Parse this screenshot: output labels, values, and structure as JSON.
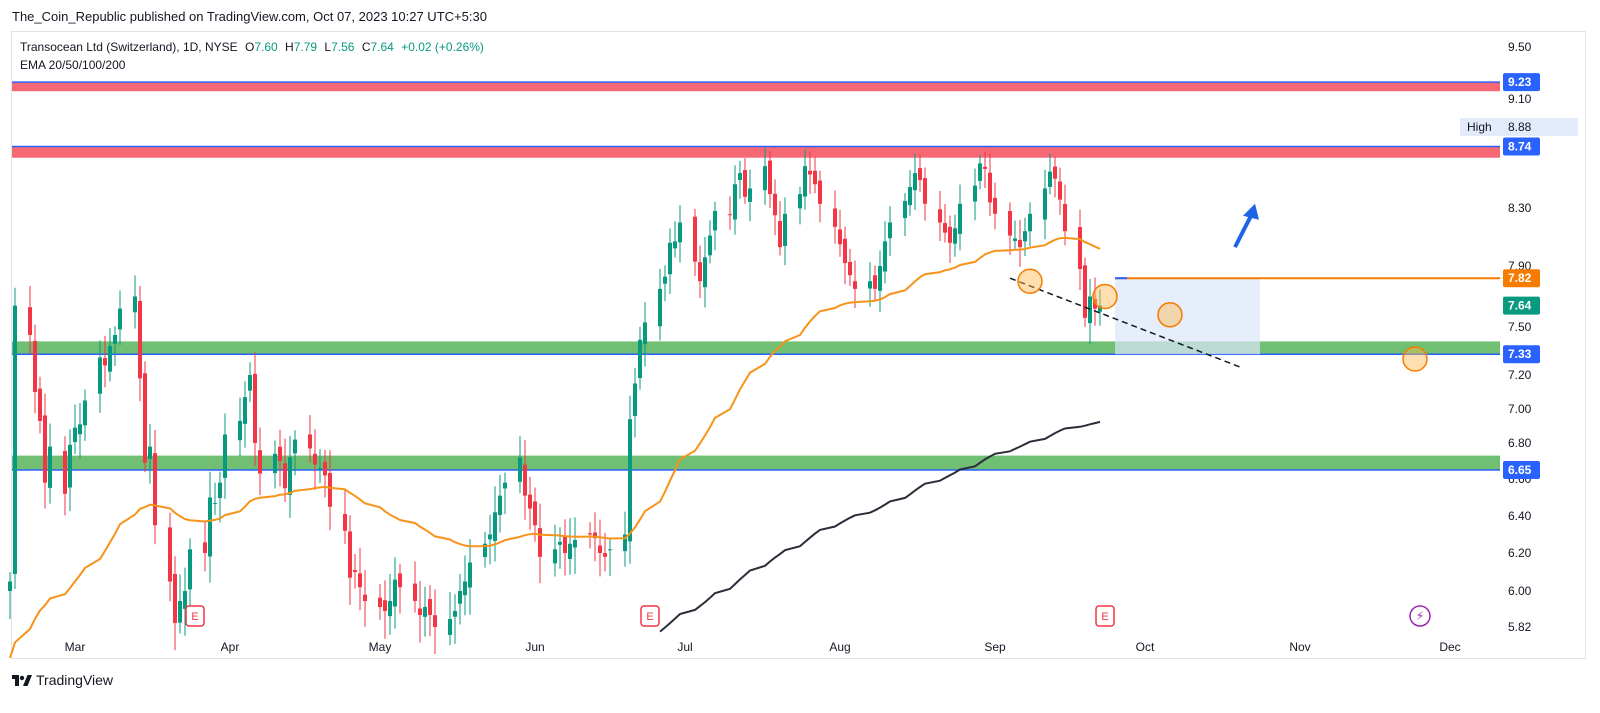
{
  "header": {
    "published": "The_Coin_Republic published on TradingView.com, Oct 07, 2023 10:27 UTC+5:30"
  },
  "legend": {
    "symbol": "Transocean Ltd (Switzerland), 1D, NYSE",
    "o_label": "O",
    "o": "7.60",
    "h_label": "H",
    "h": "7.79",
    "l_label": "L",
    "l": "7.56",
    "c_label": "C",
    "c": "7.64",
    "change": "+0.02 (+0.26%)",
    "indicator": "EMA 20/50/100/200"
  },
  "footer": {
    "brand": "TradingView"
  },
  "colors": {
    "up": "#089981",
    "down": "#f23645",
    "resistance": "#f23645",
    "support": "#4caf50",
    "level_line": "#2962ff",
    "ema50": "#f7931a",
    "ema200": "#2a2e39",
    "orange_level": "#f57c00",
    "selection": "#dce6fa",
    "arrow": "#1e63e8"
  },
  "chart_data": {
    "type": "candlestick",
    "title": "",
    "xlabel": "",
    "ylabel": "",
    "y_ticks": [
      "9.50",
      "9.10",
      "8.88",
      "8.30",
      "7.90",
      "7.50",
      "7.20",
      "7.00",
      "6.80",
      "6.60",
      "6.40",
      "6.20",
      "6.00",
      "5.82"
    ],
    "x_ticks": [
      "Mar",
      "Apr",
      "May",
      "Jun",
      "Jul",
      "Aug",
      "Sep",
      "Oct",
      "Nov",
      "Dec"
    ],
    "ylim": [
      5.82,
      9.55
    ],
    "grid": false,
    "price_badges": [
      {
        "value": "9.23",
        "color": "#2962ff"
      },
      {
        "value": "8.74",
        "color": "#2962ff"
      },
      {
        "value": "7.82",
        "color": "#f57c00"
      },
      {
        "value": "7.64",
        "color": "#089981"
      },
      {
        "value": "7.33",
        "color": "#2962ff"
      },
      {
        "value": "6.65",
        "color": "#2962ff"
      }
    ],
    "high_marker": {
      "label": "High",
      "value": "8.88"
    },
    "zones": [
      {
        "kind": "resistance",
        "low": 9.16,
        "high": 9.23
      },
      {
        "kind": "resistance",
        "low": 8.66,
        "high": 8.74
      },
      {
        "kind": "support",
        "low": 7.33,
        "high": 7.41
      },
      {
        "kind": "support",
        "low": 6.65,
        "high": 6.73
      }
    ],
    "horizontal_lines": [
      {
        "value": 9.23
      },
      {
        "value": 8.74
      },
      {
        "value": 7.33
      },
      {
        "value": 6.65
      }
    ],
    "orange_level": {
      "value": 7.82,
      "from_day": 221
    },
    "selection_box": {
      "from_day": 221,
      "to_day": 250,
      "low": 7.33,
      "high": 7.82
    },
    "trendline": {
      "from": [
        200,
        7.82
      ],
      "to": [
        246,
        7.25
      ]
    },
    "arrow": {
      "from": [
        245,
        8.03
      ],
      "to": [
        249,
        8.33
      ]
    },
    "circles": [
      {
        "day": 204,
        "value": 7.8
      },
      {
        "day": 219,
        "value": 7.7
      },
      {
        "day": 232,
        "value": 7.58
      },
      {
        "day": 281,
        "value": 7.3
      }
    ],
    "event_markers": [
      {
        "kind": "earnings",
        "label": "E",
        "day": 37
      },
      {
        "kind": "earnings",
        "label": "E",
        "day": 128
      },
      {
        "kind": "earnings",
        "label": "E",
        "day": 219
      },
      {
        "kind": "dividend",
        "label": "⚡",
        "day": 282
      },
      {
        "kind": "earnings-upcoming",
        "label": "E",
        "day": 307
      }
    ],
    "series": [
      {
        "name": "",
        "description": "approximate daily closes (NYSE RIG), Feb 16 – Oct 06 2023",
        "x_start": "2023-02-16",
        "closes": [
          6.05,
          7.64,
          7.45,
          7.1,
          6.93,
          6.58,
          6.78,
          6.52,
          6.79,
          6.89,
          6.91,
          7.05,
          7.31,
          7.26,
          7.38,
          7.45,
          7.62,
          7.7,
          7.18,
          6.69,
          6.78,
          6.35,
          6.05,
          5.84,
          5.95,
          6.0,
          6.22,
          6.2,
          6.5,
          6.47,
          6.58,
          6.85,
          6.93,
          7.07,
          7.2,
          6.8,
          6.63,
          6.74,
          6.7,
          6.55,
          6.72,
          6.82,
          6.77,
          6.68,
          6.66,
          6.62,
          6.45,
          6.32,
          6.07,
          6.1,
          6.02,
          5.95,
          5.92,
          5.9,
          5.95,
          6.06,
          6.02,
          5.95,
          5.88,
          5.92,
          5.88,
          5.82,
          5.86,
          5.9,
          6.0,
          6.05,
          6.15,
          6.25,
          6.3,
          6.42,
          6.51,
          6.58,
          6.72,
          6.51,
          6.44,
          6.35,
          6.18,
          6.22,
          6.26,
          6.2,
          6.25,
          6.27,
          6.3,
          6.28,
          6.2,
          6.18,
          6.22,
          6.3,
          6.94,
          7.15,
          7.42,
          7.53,
          7.75,
          7.83,
          8.06,
          8.07,
          8.2,
          7.93,
          7.8,
          7.96,
          8.11,
          8.28,
          8.25,
          8.47,
          8.55,
          8.38,
          8.44,
          8.6,
          8.4,
          8.25,
          8.03,
          8.26,
          8.4,
          8.6,
          8.54,
          8.47,
          8.33,
          8.17,
          8.05,
          7.92,
          7.84,
          7.75,
          7.8,
          7.75,
          7.9,
          8.07,
          8.2,
          8.35,
          8.45,
          8.55,
          8.5,
          8.33,
          8.2,
          8.13,
          8.06,
          8.16,
          8.33,
          8.46,
          8.62,
          8.58,
          8.34,
          8.26,
          8.11,
          8.09,
          8.03,
          8.14,
          8.26,
          8.44,
          8.56,
          8.51,
          8.36,
          8.14,
          7.88,
          7.56,
          7.7,
          7.62,
          7.64
        ]
      },
      {
        "name": "",
        "description": "EMA 50"
      },
      {
        "name": "",
        "description": "EMA 200"
      }
    ]
  }
}
